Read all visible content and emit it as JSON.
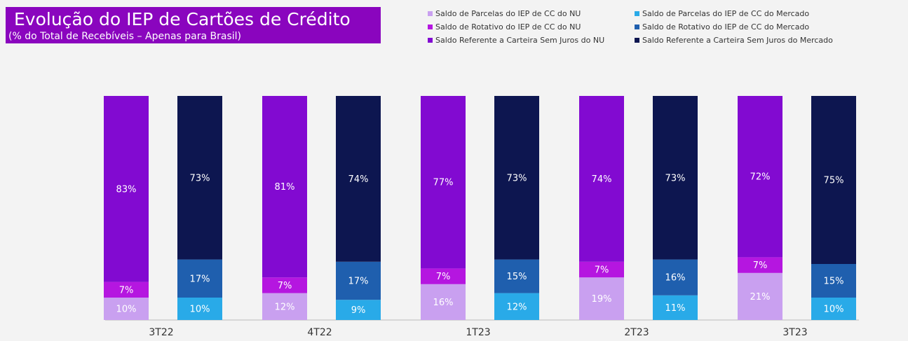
{
  "chart_data": {
    "type": "bar",
    "title": "Evolução do IEP de Cartões de Crédito",
    "subtitle": "(% do Total de Recebíveis – Apenas para Brasil)",
    "stacked": true,
    "categories": [
      "3T22",
      "4T22",
      "1T23",
      "2T23",
      "3T23"
    ],
    "series": [
      {
        "name": "Saldo de Parcelas do IEP de CC do NU",
        "color": "#c9a0f0",
        "stack": 0,
        "values": [
          10,
          12,
          16,
          19,
          21
        ],
        "value_labels": [
          "10%",
          "12%",
          "16%",
          "19%",
          "21%"
        ]
      },
      {
        "name": "Saldo de Rotativo do IEP de CC do NU",
        "color": "#b516e0",
        "stack": 0,
        "values": [
          7,
          7,
          7,
          7,
          7
        ],
        "value_labels": [
          "7%",
          "7%",
          "7%",
          "7%",
          "7%"
        ]
      },
      {
        "name": "Saldo Referente a Carteira Sem Juros do NU",
        "color": "#820ad1",
        "stack": 0,
        "values": [
          83,
          81,
          77,
          74,
          72
        ],
        "value_labels": [
          "83%",
          "81%",
          "77%",
          "74%",
          "72%"
        ]
      },
      {
        "name": "Saldo de Parcelas do IEP de CC do Mercado",
        "color": "#29aae8",
        "stack": 1,
        "values": [
          10,
          9,
          12,
          11,
          10
        ],
        "value_labels": [
          "10%",
          "9%",
          "12%",
          "11%",
          "10%"
        ]
      },
      {
        "name": "Saldo de Rotativo do IEP de CC do Mercado",
        "color": "#1f5fae",
        "stack": 1,
        "values": [
          17,
          17,
          15,
          16,
          15
        ],
        "value_labels": [
          "17%",
          "17%",
          "15%",
          "16%",
          "15%"
        ]
      },
      {
        "name": "Saldo Referente a Carteira Sem Juros do Mercado",
        "color": "#0d1650",
        "stack": 1,
        "values": [
          73,
          74,
          73,
          73,
          75
        ],
        "value_labels": [
          "73%",
          "74%",
          "73%",
          "73%",
          "75%"
        ]
      }
    ]
  }
}
